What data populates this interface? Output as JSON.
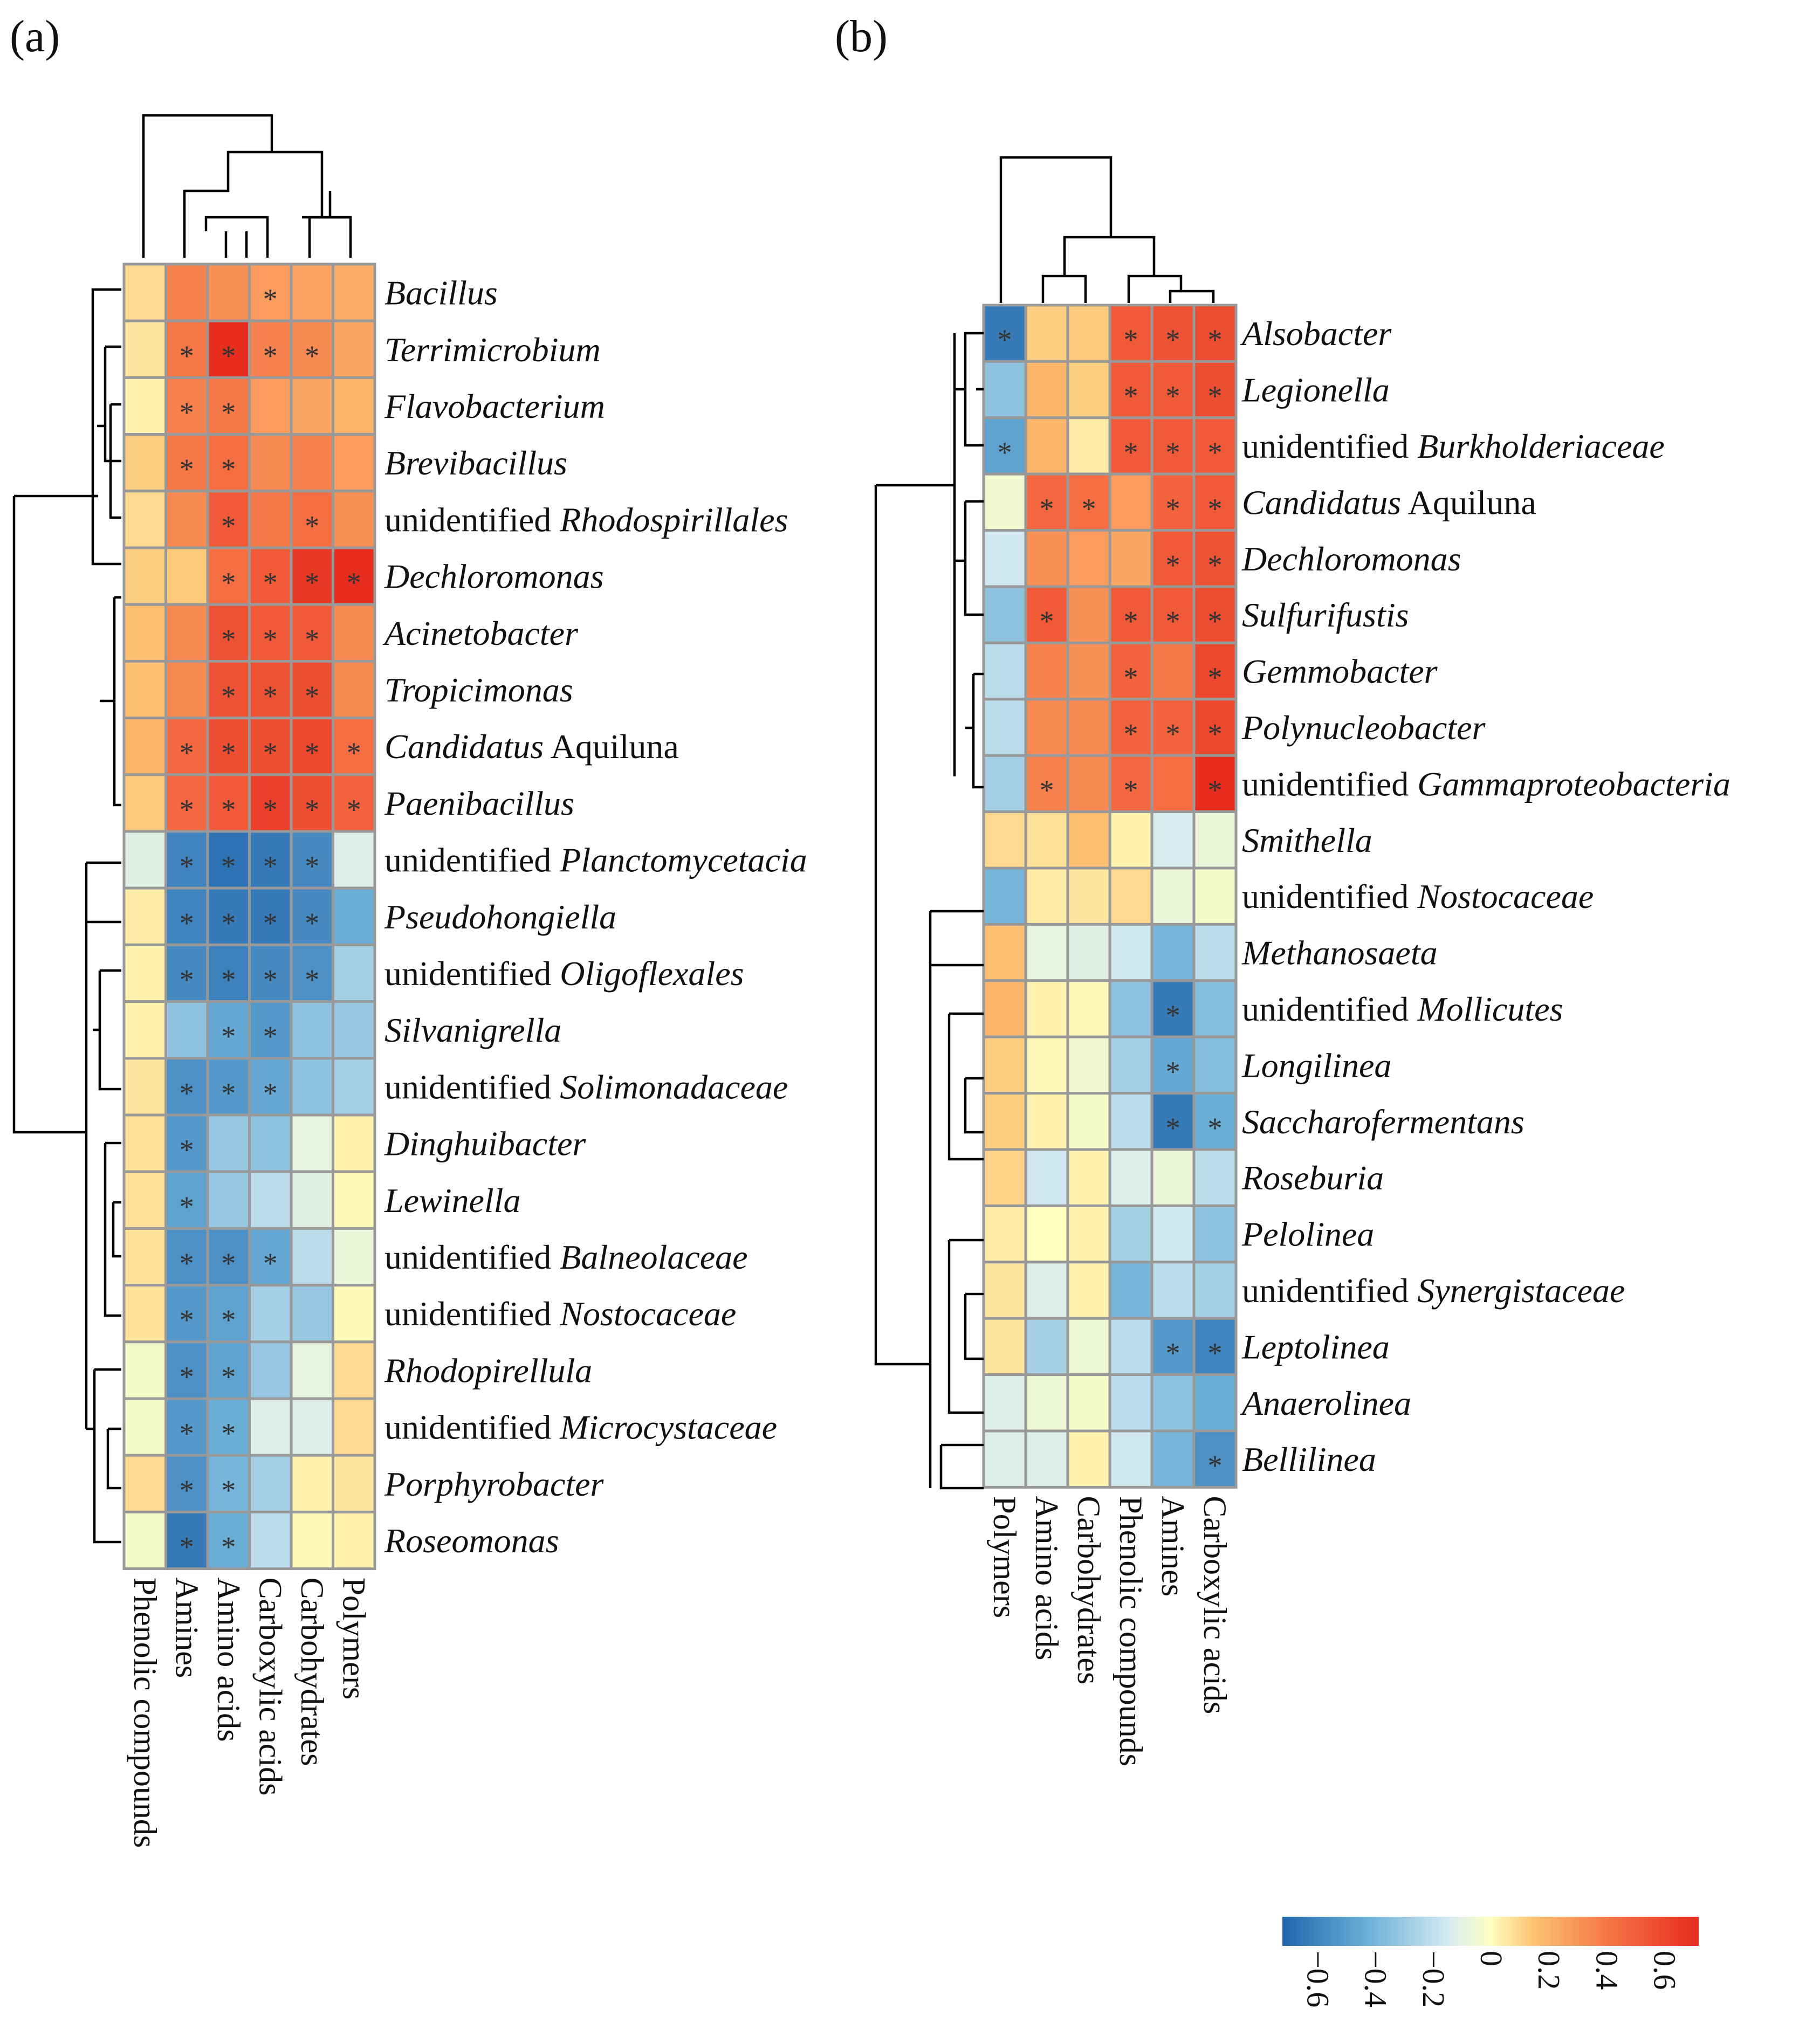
{
  "chart_data": [
    {
      "type": "heatmap",
      "panel": "(a)",
      "columns": [
        "Phenolic compounds",
        "Amines",
        "Amino acids",
        "Carboxylic acids",
        "Carbohydrates",
        "Polymers"
      ],
      "rows": [
        {
          "pre": "",
          "name": "Bacillus",
          "post": "",
          "values": [
            0.15,
            0.42,
            0.38,
            0.35,
            0.33,
            0.3
          ],
          "sig": [
            0,
            0,
            0,
            1,
            0,
            0
          ]
        },
        {
          "pre": "",
          "name": "Terrimicrobium",
          "post": "",
          "values": [
            0.1,
            0.45,
            0.72,
            0.42,
            0.4,
            0.32
          ],
          "sig": [
            0,
            1,
            1,
            1,
            1,
            0
          ]
        },
        {
          "pre": "",
          "name": "Flavobacterium",
          "post": "",
          "values": [
            0.05,
            0.42,
            0.45,
            0.35,
            0.32,
            0.28
          ],
          "sig": [
            0,
            1,
            1,
            0,
            0,
            0
          ]
        },
        {
          "pre": "",
          "name": "Brevibacillus",
          "post": "",
          "values": [
            0.2,
            0.45,
            0.48,
            0.4,
            0.42,
            0.35
          ],
          "sig": [
            0,
            1,
            1,
            0,
            0,
            0
          ]
        },
        {
          "pre": "unidentified ",
          "name": "Rhodospirillales",
          "post": "",
          "values": [
            0.15,
            0.4,
            0.55,
            0.45,
            0.48,
            0.38
          ],
          "sig": [
            0,
            0,
            1,
            0,
            1,
            0
          ]
        },
        {
          "pre": "",
          "name": "Dechloromonas",
          "post": "",
          "values": [
            0.2,
            0.22,
            0.48,
            0.55,
            0.68,
            0.72
          ],
          "sig": [
            0,
            0,
            1,
            1,
            1,
            1
          ]
        },
        {
          "pre": "",
          "name": "Acinetobacter",
          "post": "",
          "values": [
            0.25,
            0.4,
            0.58,
            0.55,
            0.55,
            0.4
          ],
          "sig": [
            0,
            0,
            1,
            1,
            1,
            0
          ]
        },
        {
          "pre": "",
          "name": "Tropicimonas",
          "post": "",
          "values": [
            0.25,
            0.4,
            0.58,
            0.58,
            0.6,
            0.4
          ],
          "sig": [
            0,
            0,
            1,
            1,
            1,
            0
          ]
        },
        {
          "pre": "",
          "name": "Candidatus",
          "post": " Aquiluna",
          "values": [
            0.28,
            0.5,
            0.6,
            0.6,
            0.62,
            0.48
          ],
          "sig": [
            0,
            1,
            1,
            1,
            1,
            1
          ]
        },
        {
          "pre": "",
          "name": "Paenibacillus",
          "post": "",
          "values": [
            0.22,
            0.5,
            0.55,
            0.65,
            0.6,
            0.52
          ],
          "sig": [
            0,
            1,
            1,
            1,
            1,
            1
          ]
        },
        {
          "pre": "unidentified ",
          "name": "Planctomycetacia",
          "post": "",
          "values": [
            -0.18,
            -0.62,
            -0.68,
            -0.65,
            -0.6,
            -0.2
          ],
          "sig": [
            0,
            1,
            1,
            1,
            1,
            0
          ]
        },
        {
          "pre": "",
          "name": "Pseudohongiella",
          "post": "",
          "values": [
            0.08,
            -0.62,
            -0.65,
            -0.65,
            -0.6,
            -0.48
          ],
          "sig": [
            0,
            1,
            1,
            1,
            1,
            0
          ]
        },
        {
          "pre": "unidentified ",
          "name": "Oligoflexales",
          "post": "",
          "values": [
            0.05,
            -0.6,
            -0.63,
            -0.6,
            -0.58,
            -0.35
          ],
          "sig": [
            0,
            1,
            1,
            1,
            1,
            0
          ]
        },
        {
          "pre": "",
          "name": "Silvanigrella",
          "post": "",
          "values": [
            0.05,
            -0.4,
            -0.5,
            -0.55,
            -0.4,
            -0.38
          ],
          "sig": [
            0,
            0,
            1,
            1,
            0,
            0
          ]
        },
        {
          "pre": "unidentified ",
          "name": "Solimonadaceae",
          "post": "",
          "values": [
            0.1,
            -0.58,
            -0.55,
            -0.5,
            -0.4,
            -0.35
          ],
          "sig": [
            0,
            1,
            1,
            1,
            0,
            0
          ]
        },
        {
          "pre": "",
          "name": "Dinghuibacter",
          "post": "",
          "values": [
            0.12,
            -0.55,
            -0.38,
            -0.4,
            -0.15,
            0.05
          ],
          "sig": [
            0,
            1,
            0,
            0,
            0,
            0
          ]
        },
        {
          "pre": "",
          "name": "Lewinella",
          "post": "",
          "values": [
            0.12,
            -0.52,
            -0.38,
            -0.3,
            -0.18,
            0.02
          ],
          "sig": [
            0,
            1,
            0,
            0,
            0,
            0
          ]
        },
        {
          "pre": "unidentified ",
          "name": "Balneolaceae",
          "post": "",
          "values": [
            0.12,
            -0.58,
            -0.58,
            -0.5,
            -0.3,
            -0.12
          ],
          "sig": [
            0,
            1,
            1,
            1,
            0,
            0
          ]
        },
        {
          "pre": "unidentified ",
          "name": "Nostocaceae",
          "post": "",
          "values": [
            0.12,
            -0.55,
            -0.52,
            -0.35,
            -0.38,
            0.02
          ],
          "sig": [
            0,
            1,
            1,
            0,
            0,
            0
          ]
        },
        {
          "pre": "",
          "name": "Rhodopirellula",
          "post": "",
          "values": [
            -0.05,
            -0.58,
            -0.52,
            -0.38,
            -0.15,
            0.15
          ],
          "sig": [
            0,
            1,
            1,
            0,
            0,
            0
          ]
        },
        {
          "pre": "unidentified ",
          "name": "Microcystaceae",
          "post": "",
          "values": [
            -0.05,
            -0.55,
            -0.48,
            -0.2,
            -0.2,
            0.15
          ],
          "sig": [
            0,
            1,
            1,
            0,
            0,
            0
          ]
        },
        {
          "pre": "",
          "name": "Porphyrobacter",
          "post": "",
          "values": [
            0.15,
            -0.58,
            -0.45,
            -0.35,
            0.05,
            0.1
          ],
          "sig": [
            0,
            1,
            1,
            0,
            0,
            0
          ]
        },
        {
          "pre": "",
          "name": "Roseomonas",
          "post": "",
          "values": [
            -0.05,
            -0.65,
            -0.48,
            -0.3,
            0.02,
            0.05
          ],
          "sig": [
            0,
            1,
            1,
            0,
            0,
            0
          ]
        }
      ]
    },
    {
      "type": "heatmap",
      "panel": "(b)",
      "columns": [
        "Polymers",
        "Amino acids",
        "Carbohydrates",
        "Phenolic compounds",
        "Amines",
        "Carboxylic acids"
      ],
      "rows": [
        {
          "pre": "",
          "name": "Alsobacter",
          "post": "",
          "values": [
            -0.65,
            0.2,
            0.22,
            0.55,
            0.58,
            0.6
          ],
          "sig": [
            1,
            0,
            0,
            1,
            1,
            1
          ]
        },
        {
          "pre": "",
          "name": "Legionella",
          "post": "",
          "values": [
            -0.4,
            0.28,
            0.2,
            0.55,
            0.55,
            0.6
          ],
          "sig": [
            0,
            0,
            0,
            1,
            1,
            1
          ]
        },
        {
          "pre": "unidentified ",
          "name": "Burkholderiaceae",
          "post": "",
          "values": [
            -0.52,
            0.28,
            0.08,
            0.55,
            0.55,
            0.55
          ],
          "sig": [
            1,
            0,
            0,
            1,
            1,
            1
          ]
        },
        {
          "pre": "",
          "name": "Candidatus",
          "post": " Aquiluna",
          "values": [
            -0.08,
            0.5,
            0.48,
            0.35,
            0.52,
            0.55
          ],
          "sig": [
            0,
            1,
            1,
            0,
            1,
            1
          ]
        },
        {
          "pre": "",
          "name": "Dechloromonas",
          "post": "",
          "values": [
            -0.25,
            0.38,
            0.35,
            0.32,
            0.55,
            0.58
          ],
          "sig": [
            0,
            0,
            0,
            0,
            1,
            1
          ]
        },
        {
          "pre": "",
          "name": "Sulfurifustis",
          "post": "",
          "values": [
            -0.4,
            0.55,
            0.38,
            0.55,
            0.55,
            0.6
          ],
          "sig": [
            0,
            1,
            0,
            1,
            1,
            1
          ]
        },
        {
          "pre": "",
          "name": "Gemmobacter",
          "post": "",
          "values": [
            -0.3,
            0.42,
            0.38,
            0.52,
            0.45,
            0.62
          ],
          "sig": [
            0,
            0,
            0,
            1,
            0,
            1
          ]
        },
        {
          "pre": "",
          "name": "Polynucleobacter",
          "post": "",
          "values": [
            -0.3,
            0.4,
            0.4,
            0.52,
            0.52,
            0.62
          ],
          "sig": [
            0,
            0,
            0,
            1,
            1,
            1
          ]
        },
        {
          "pre": "unidentified ",
          "name": "Gammaproteobacteria",
          "post": "",
          "values": [
            -0.35,
            0.42,
            0.4,
            0.5,
            0.48,
            0.72
          ],
          "sig": [
            0,
            1,
            0,
            1,
            0,
            1
          ]
        },
        {
          "pre": "",
          "name": "Smithella",
          "post": "",
          "values": [
            0.15,
            0.12,
            0.25,
            0.05,
            -0.22,
            -0.12
          ],
          "sig": [
            0,
            0,
            0,
            0,
            0,
            0
          ]
        },
        {
          "pre": "unidentified ",
          "name": "Nostocaceae",
          "post": "",
          "values": [
            -0.45,
            0.08,
            0.1,
            0.15,
            -0.12,
            -0.05
          ],
          "sig": [
            0,
            0,
            0,
            0,
            0,
            0
          ]
        },
        {
          "pre": "",
          "name": "Methanosaeta",
          "post": "",
          "values": [
            0.25,
            -0.15,
            -0.18,
            -0.25,
            -0.45,
            -0.3
          ],
          "sig": [
            0,
            0,
            0,
            0,
            0,
            0
          ]
        },
        {
          "pre": "unidentified ",
          "name": "Mollicutes",
          "post": "",
          "values": [
            0.28,
            0.05,
            0.02,
            -0.4,
            -0.65,
            -0.42
          ],
          "sig": [
            0,
            0,
            0,
            0,
            1,
            0
          ]
        },
        {
          "pre": "",
          "name": "Longilinea",
          "post": "",
          "values": [
            0.2,
            0.02,
            -0.08,
            -0.35,
            -0.5,
            -0.42
          ],
          "sig": [
            0,
            0,
            0,
            0,
            1,
            0
          ]
        },
        {
          "pre": "",
          "name": "Saccharofermentans",
          "post": "",
          "values": [
            0.2,
            0.05,
            -0.05,
            -0.3,
            -0.65,
            -0.48
          ],
          "sig": [
            0,
            0,
            0,
            0,
            1,
            1
          ]
        },
        {
          "pre": "",
          "name": "Roseburia",
          "post": "",
          "values": [
            0.18,
            -0.25,
            0.05,
            -0.2,
            -0.12,
            -0.3
          ],
          "sig": [
            0,
            0,
            0,
            0,
            0,
            0
          ]
        },
        {
          "pre": "",
          "name": "Pelolinea",
          "post": "",
          "values": [
            0.08,
            0.0,
            0.05,
            -0.35,
            -0.25,
            -0.4
          ],
          "sig": [
            0,
            0,
            0,
            0,
            0,
            0
          ]
        },
        {
          "pre": "unidentified ",
          "name": "Synergistaceae",
          "post": "",
          "values": [
            0.1,
            -0.2,
            0.05,
            -0.45,
            -0.3,
            -0.35
          ],
          "sig": [
            0,
            0,
            0,
            0,
            0,
            0
          ]
        },
        {
          "pre": "",
          "name": "Leptolinea",
          "post": "",
          "values": [
            0.1,
            -0.35,
            -0.1,
            -0.3,
            -0.55,
            -0.62
          ],
          "sig": [
            0,
            0,
            0,
            0,
            1,
            1
          ]
        },
        {
          "pre": "",
          "name": "Anaerolinea",
          "post": "",
          "values": [
            -0.2,
            -0.1,
            -0.05,
            -0.3,
            -0.4,
            -0.48
          ],
          "sig": [
            0,
            0,
            0,
            0,
            0,
            0
          ]
        },
        {
          "pre": "",
          "name": "Bellilinea",
          "post": "",
          "values": [
            -0.2,
            -0.2,
            0.05,
            -0.25,
            -0.45,
            -0.58
          ],
          "sig": [
            0,
            0,
            0,
            0,
            0,
            1
          ]
        }
      ]
    }
  ],
  "legend": {
    "ticks": [
      "−0.6",
      "−0.4",
      "−0.2",
      "0",
      "0.2",
      "0.4",
      "0.6"
    ],
    "tick_values": [
      -0.6,
      -0.4,
      -0.2,
      0,
      0.2,
      0.4,
      0.6
    ],
    "range": [
      -0.72,
      0.72
    ],
    "colors": [
      "#2166ac",
      "#6aaed6",
      "#d6ebf2",
      "#ffffbf",
      "#fdc474",
      "#f46d43",
      "#e62d1e"
    ]
  },
  "star_symbol": "*",
  "colors": {
    "cell_border": "#999999",
    "text": "#111111"
  }
}
